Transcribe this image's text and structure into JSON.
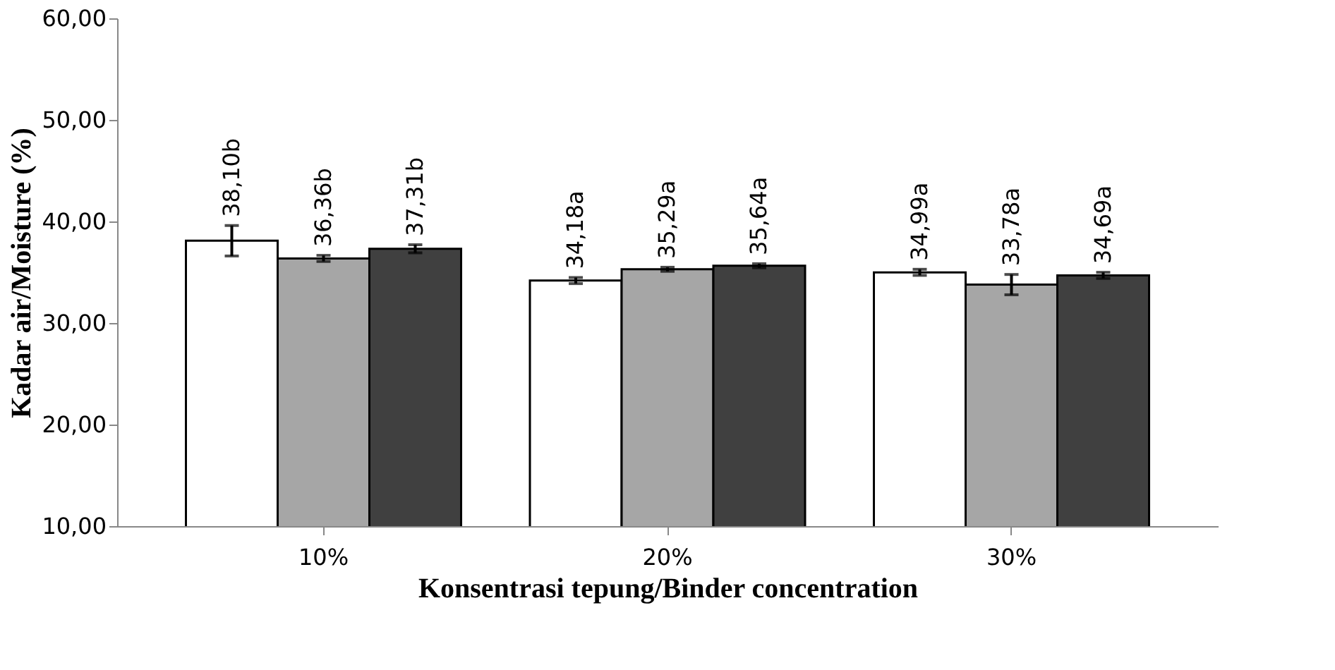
{
  "chart_data": {
    "type": "bar",
    "xlabel": "Konsentrasi tepung/Binder concentration",
    "ylabel": "Kadar air/Moisture (%)",
    "categories": [
      "10%",
      "20%",
      "30%"
    ],
    "series": [
      {
        "color": "#ffffff",
        "values": [
          38.1,
          34.18,
          34.99
        ],
        "errors": [
          1.5,
          0.3,
          0.3
        ],
        "value_labels": [
          "38,10b",
          "34,18a",
          "34,99a"
        ]
      },
      {
        "color": "#a6a6a6",
        "values": [
          36.36,
          35.29,
          33.78
        ],
        "errors": [
          0.3,
          0.2,
          1.0
        ],
        "value_labels": [
          "36,36b",
          "35,29a",
          "33,78a"
        ]
      },
      {
        "color": "#404040",
        "values": [
          37.31,
          35.64,
          34.69
        ],
        "errors": [
          0.4,
          0.2,
          0.3
        ],
        "value_labels": [
          "37,31b",
          "35,64a",
          "34,69a"
        ]
      }
    ],
    "ylim": [
      10,
      60
    ],
    "yticks": [
      {
        "value": 10,
        "label": "10,00"
      },
      {
        "value": 20,
        "label": "20,00"
      },
      {
        "value": 30,
        "label": "30,00"
      },
      {
        "value": 40,
        "label": "40,00"
      },
      {
        "value": 50,
        "label": "50,00"
      },
      {
        "value": 60,
        "label": "60,00"
      }
    ],
    "grid": false,
    "legend": false
  }
}
